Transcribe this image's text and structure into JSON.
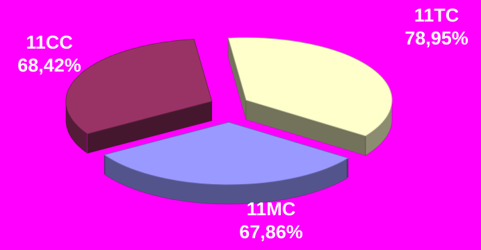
{
  "chart_data": {
    "type": "pie",
    "style": "3d-exploded",
    "categories": [
      "11TC",
      "11MC",
      "11CC"
    ],
    "values": [
      78.95,
      67.86,
      68.42
    ],
    "value_labels": [
      "78,95%",
      "67,86%",
      "68,42%"
    ],
    "colors": {
      "11TC": "#ffffcc",
      "11MC": "#9999ff",
      "11CC": "#993366"
    },
    "background": "#ff00ff"
  }
}
